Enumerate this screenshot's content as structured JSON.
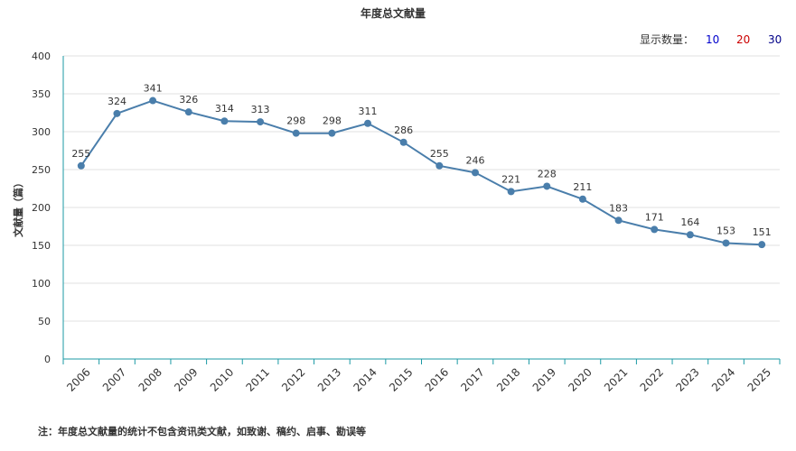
{
  "display_count": {
    "label": "显示数量：",
    "options": [
      {
        "label": "10",
        "color": "#0000cc"
      },
      {
        "label": "20",
        "color": "#cc0000"
      },
      {
        "label": "30",
        "color": "#000088"
      }
    ]
  },
  "note": "注：年度总文献量的统计不包含资讯类文献，如致谢、稿约、启事、勘误等",
  "colors": {
    "line": "#4a7eab",
    "point": "#4a7eab",
    "axis": "#1b9aa5",
    "grid": "#e0e0e0"
  },
  "chart_data": {
    "type": "line",
    "title": "年度总文献量",
    "ylabel": "文献量（篇）",
    "xlabel": "",
    "ylim": [
      0,
      400
    ],
    "y_ticks": [
      0,
      50,
      100,
      150,
      200,
      250,
      300,
      350,
      400
    ],
    "grid": true,
    "categories": [
      "2006",
      "2007",
      "2008",
      "2009",
      "2010",
      "2011",
      "2012",
      "2013",
      "2014",
      "2015",
      "2016",
      "2017",
      "2018",
      "2019",
      "2020",
      "2021",
      "2022",
      "2023",
      "2024",
      "2025"
    ],
    "values": [
      255,
      324,
      341,
      326,
      314,
      313,
      298,
      298,
      311,
      286,
      255,
      246,
      221,
      228,
      211,
      183,
      171,
      164,
      153,
      151
    ]
  }
}
